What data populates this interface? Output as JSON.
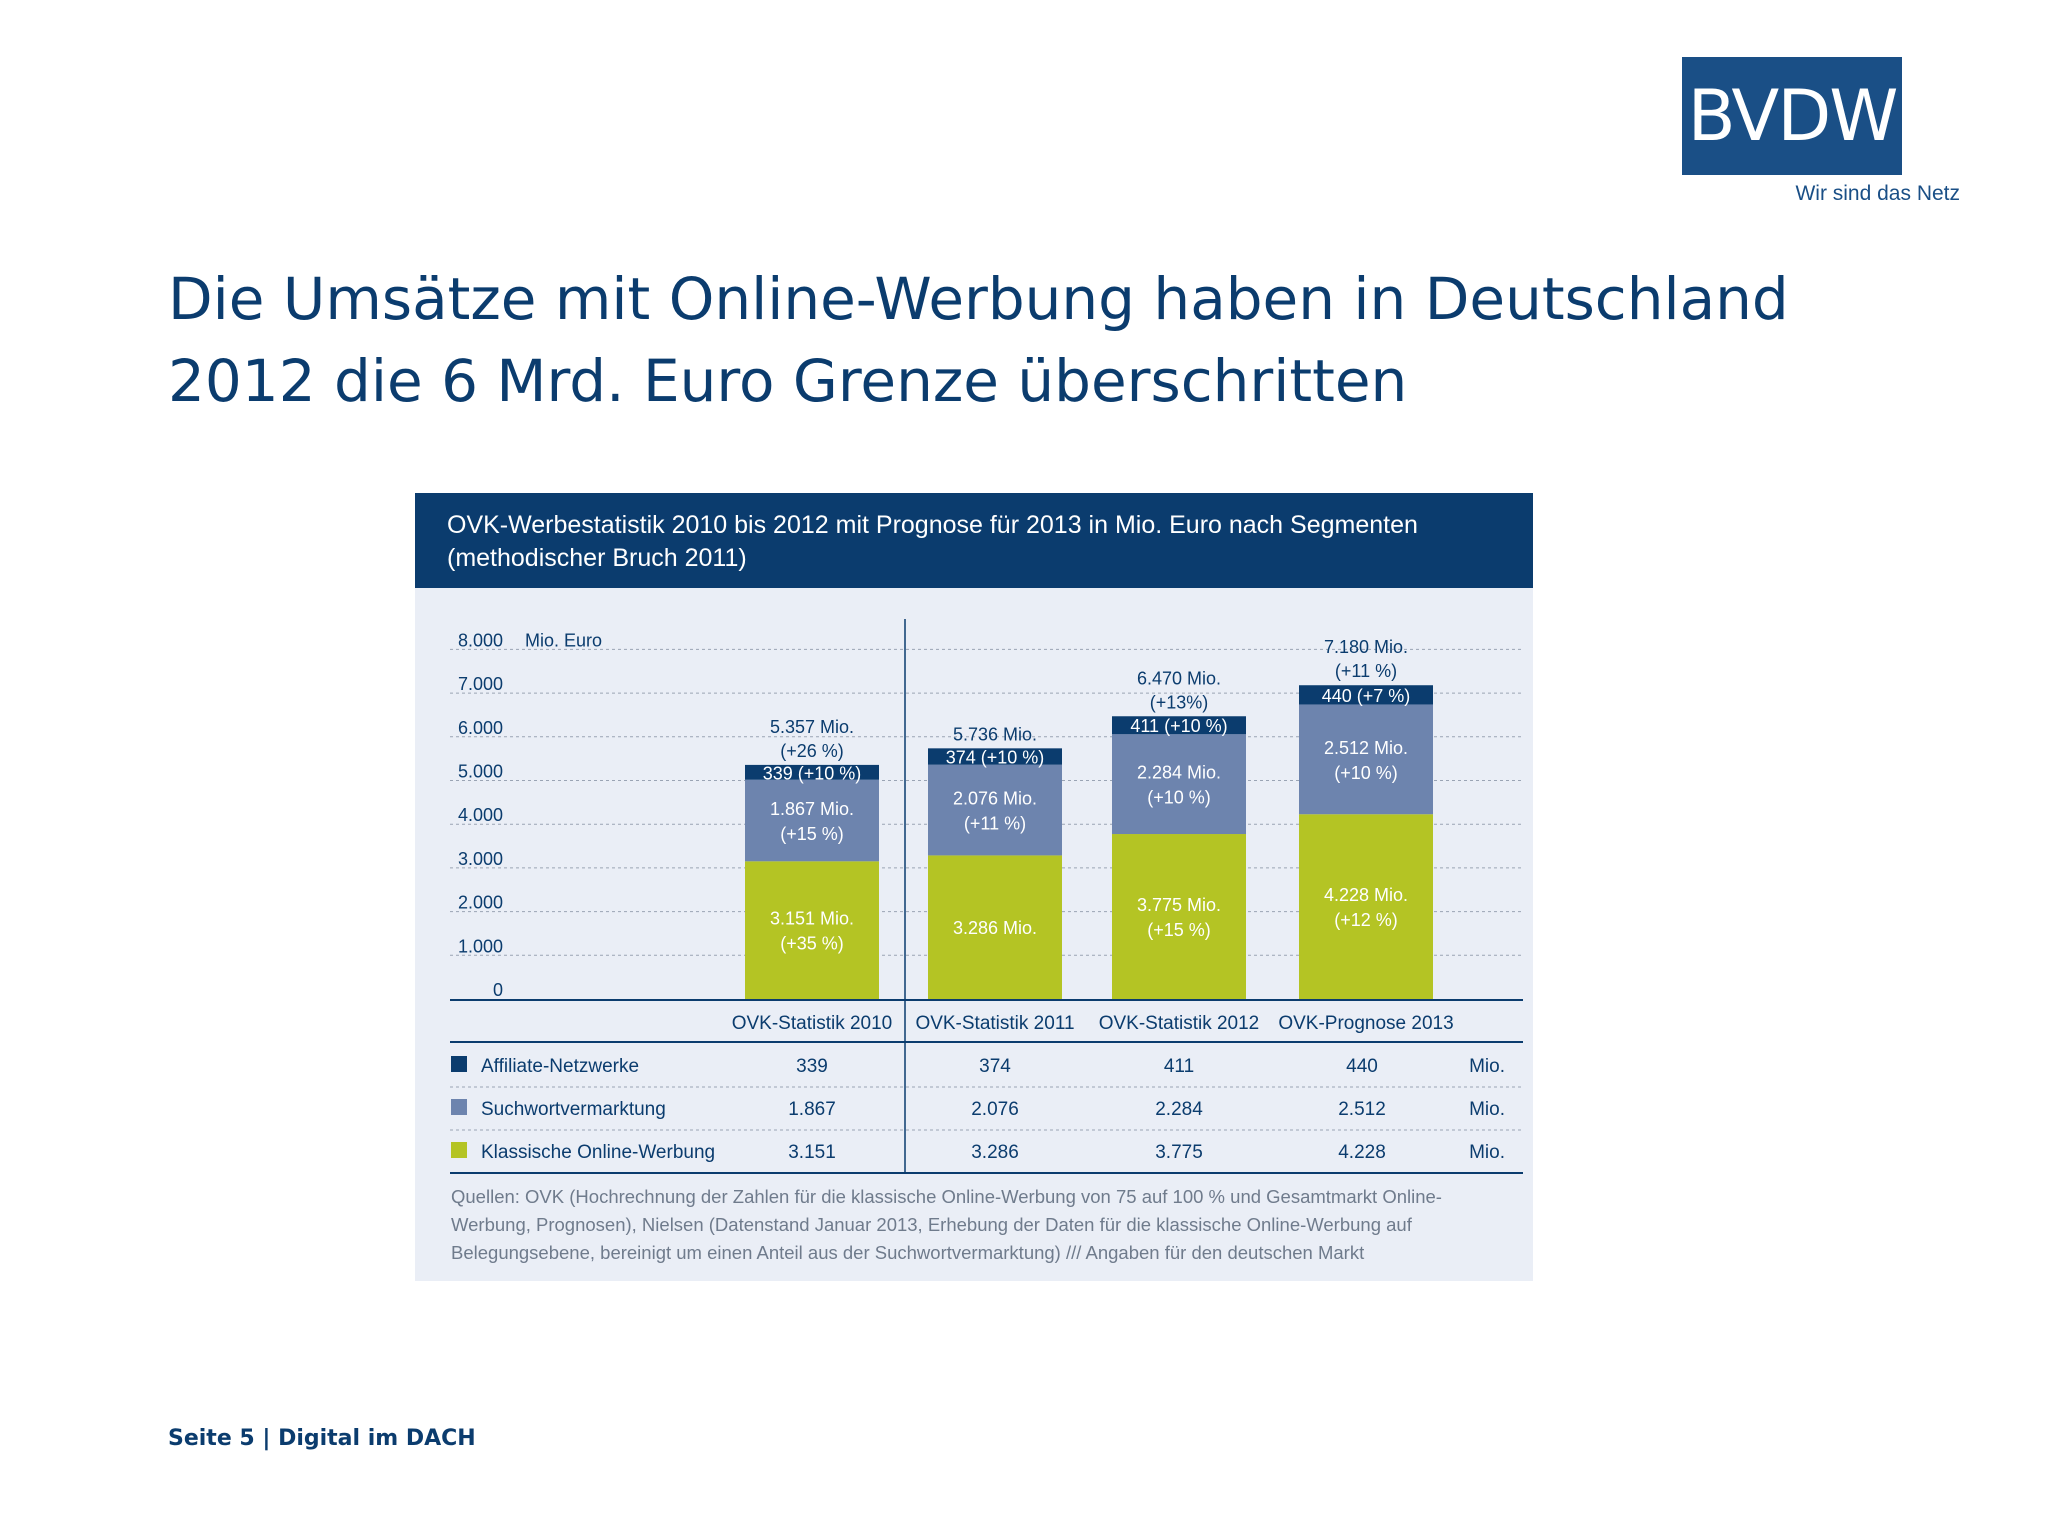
{
  "logo": {
    "text": "BVDW",
    "tagline": "Wir sind das Netz"
  },
  "slide": {
    "title": "Die Umsätze mit Online-Werbung haben in Deutschland 2012 die 6 Mrd. Euro Grenze überschritten",
    "footer": "Seite 5 | Digital im DACH"
  },
  "chart_data": {
    "type": "bar",
    "stacked": true,
    "title": "OVK-Werbestatistik 2010 bis 2012 mit Prognose für 2013 in Mio. Euro nach Segmenten",
    "subtitle": "(methodischer Bruch 2011)",
    "ylabel": "Mio. Euro",
    "ylim": [
      0,
      8000
    ],
    "yticks": [
      0,
      1000,
      2000,
      3000,
      4000,
      5000,
      6000,
      7000,
      8000
    ],
    "ytick_labels": [
      "0",
      "1.000",
      "2.000",
      "3.000",
      "4.000",
      "5.000",
      "6.000",
      "7.000",
      "8.000"
    ],
    "grid": true,
    "categories": [
      "OVK-Statistik 2010",
      "OVK-Statistik 2011",
      "OVK-Statistik 2012",
      "OVK-Prognose 2013"
    ],
    "series": [
      {
        "name": "Klassische Online-Werbung",
        "color": "#b4c424",
        "values": [
          3151,
          3286,
          3775,
          4228
        ],
        "labels": [
          [
            "3.151 Mio.",
            "(+35 %)"
          ],
          [
            "3.286 Mio."
          ],
          [
            "3.775 Mio.",
            "(+15 %)"
          ],
          [
            "4.228 Mio.",
            "(+12 %)"
          ]
        ]
      },
      {
        "name": "Suchwortvermarktung",
        "color": "#6d84ae",
        "values": [
          1867,
          2076,
          2284,
          2512
        ],
        "labels": [
          [
            "1.867 Mio.",
            "(+15 %)"
          ],
          [
            "2.076 Mio.",
            "(+11 %)"
          ],
          [
            "2.284 Mio.",
            "(+10 %)"
          ],
          [
            "2.512 Mio.",
            "(+10 %)"
          ]
        ]
      },
      {
        "name": "Affiliate-Netzwerke",
        "color": "#0b3c6e",
        "values": [
          339,
          374,
          411,
          440
        ],
        "labels": [
          [
            "339 (+10 %)"
          ],
          [
            "374 (+10 %)"
          ],
          [
            "411 (+10 %)"
          ],
          [
            "440 (+7 %)"
          ]
        ]
      }
    ],
    "totals": [
      {
        "value": 5357,
        "lines": [
          "5.357 Mio.",
          "(+26 %)"
        ]
      },
      {
        "value": 5736,
        "lines": [
          "5.736 Mio."
        ]
      },
      {
        "value": 6470,
        "lines": [
          "6.470 Mio.",
          "(+13%)"
        ]
      },
      {
        "value": 7180,
        "lines": [
          "7.180 Mio.",
          "(+11 %)"
        ]
      }
    ],
    "table": {
      "unit": "Mio.",
      "rows": [
        {
          "label": "Affiliate-Netzwerke",
          "color": "#0b3c6e",
          "values": [
            "339",
            "374",
            "411",
            "440"
          ]
        },
        {
          "label": "Suchwortvermarktung",
          "color": "#6d84ae",
          "values": [
            "1.867",
            "2.076",
            "2.284",
            "2.512"
          ]
        },
        {
          "label": "Klassische Online-Werbung",
          "color": "#b4c424",
          "values": [
            "3.151",
            "3.286",
            "3.775",
            "4.228"
          ]
        }
      ]
    },
    "source": "Quellen: OVK (Hochrechnung der Zahlen für die klassische Online-Werbung von 75 auf 100 % und Gesamtmarkt Online-Werbung, Prognosen), Nielsen (Datenstand Januar 2013, Erhebung der Daten für die klassische Online-Werbung auf Belegungsebene, bereinigt um einen Anteil aus der Suchwortvermarktung) /// Angaben für den deutschen Markt"
  }
}
